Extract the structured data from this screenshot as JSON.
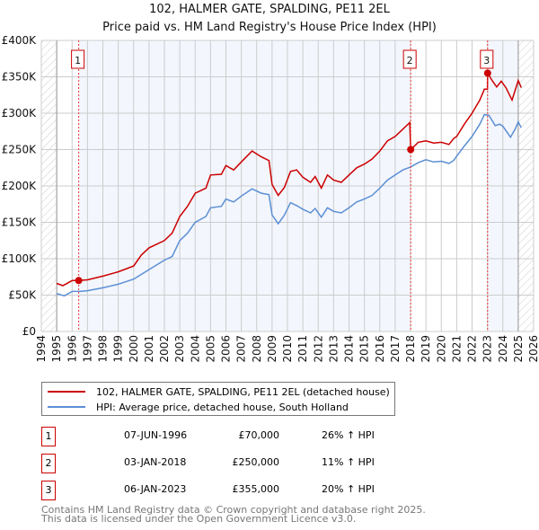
{
  "chart_data": {
    "type": "line",
    "title": "102, HALMER GATE, SPALDING, PE11 2EL",
    "subtitle": "Price paid vs. HM Land Registry's House Price Index (HPI)",
    "xlim": [
      1994,
      2026
    ],
    "ylim": [
      0,
      400000
    ],
    "x_ticks": [
      "1994",
      "1995",
      "1996",
      "1997",
      "1998",
      "1999",
      "2000",
      "2001",
      "2002",
      "2003",
      "2004",
      "2005",
      "2006",
      "2007",
      "2008",
      "2009",
      "2010",
      "2011",
      "2012",
      "2013",
      "2014",
      "2015",
      "2016",
      "2017",
      "2018",
      "2019",
      "2020",
      "2021",
      "2022",
      "2023",
      "2024",
      "2025",
      "2026"
    ],
    "y_ticks": [
      {
        "v": 0,
        "label": "£0"
      },
      {
        "v": 50000,
        "label": "£50K"
      },
      {
        "v": 100000,
        "label": "£100K"
      },
      {
        "v": 150000,
        "label": "£150K"
      },
      {
        "v": 200000,
        "label": "£200K"
      },
      {
        "v": 250000,
        "label": "£250K"
      },
      {
        "v": 300000,
        "label": "£300K"
      },
      {
        "v": 350000,
        "label": "£350K"
      },
      {
        "v": 400000,
        "label": "£400K"
      }
    ],
    "series": [
      {
        "name": "102, HALMER GATE, SPALDING, PE11 2EL (detached house)",
        "color": "#cc0000",
        "x": [
          1995,
          1995.4,
          1996,
          1996.43,
          1997,
          1998,
          1999,
          2000,
          2000.5,
          2001,
          2002,
          2002.5,
          2003,
          2003.5,
          2004,
          2004.7,
          2005,
          2005.7,
          2006,
          2006.5,
          2007,
          2007.7,
          2008.3,
          2008.8,
          2009,
          2009.4,
          2009.8,
          2010.2,
          2010.6,
          2011,
          2011.5,
          2011.8,
          2012.2,
          2012.6,
          2013,
          2013.5,
          2014,
          2014.5,
          2015,
          2015.5,
          2016,
          2016.5,
          2017,
          2017.5,
          2017.95,
          2018.01,
          2018.5,
          2019,
          2019.5,
          2020,
          2020.5,
          2020.8,
          2021,
          2021.5,
          2022,
          2022.5,
          2022.8,
          2023.0,
          2023.01,
          2023.3,
          2023.6,
          2023.9,
          2024.2,
          2024.6,
          2025,
          2025.2
        ],
        "y": [
          66000,
          63000,
          70000,
          70000,
          71000,
          76000,
          82000,
          90000,
          105000,
          115000,
          125000,
          135000,
          158000,
          172000,
          190000,
          197000,
          215000,
          216000,
          228000,
          222000,
          233000,
          248000,
          240000,
          235000,
          202000,
          187000,
          198000,
          220000,
          222000,
          212000,
          205000,
          213000,
          197000,
          215000,
          208000,
          205000,
          215000,
          225000,
          230000,
          237000,
          248000,
          262000,
          268000,
          278000,
          287000,
          250000,
          260000,
          262000,
          259000,
          260000,
          257000,
          265000,
          268000,
          285000,
          300000,
          318000,
          333000,
          333000,
          355000,
          345000,
          336000,
          344000,
          335000,
          318000,
          345000,
          335000
        ]
      },
      {
        "name": "HPI: Average price, detached house, South Holland",
        "color": "#5b8fd4",
        "x": [
          1995,
          1995.5,
          1996,
          1996.5,
          1997,
          1998,
          1999,
          2000,
          2001,
          2002,
          2002.5,
          2003,
          2003.5,
          2004,
          2004.7,
          2005,
          2005.7,
          2006,
          2006.5,
          2007,
          2007.7,
          2008.3,
          2008.8,
          2009,
          2009.4,
          2009.8,
          2010.2,
          2010.6,
          2011,
          2011.5,
          2011.8,
          2012.2,
          2012.6,
          2013,
          2013.5,
          2014,
          2014.5,
          2015,
          2015.5,
          2016,
          2016.5,
          2017,
          2017.5,
          2018,
          2018.5,
          2019,
          2019.5,
          2020,
          2020.5,
          2020.8,
          2021,
          2021.5,
          2022,
          2022.5,
          2022.8,
          2023.1,
          2023.5,
          2023.8,
          2024,
          2024.5,
          2024.8,
          2025,
          2025.2
        ],
        "y": [
          52000,
          49000,
          55000,
          55000,
          56000,
          60000,
          65000,
          72000,
          85000,
          98000,
          103000,
          125000,
          135000,
          150000,
          158000,
          170000,
          172000,
          182000,
          178000,
          186000,
          196000,
          190000,
          188000,
          160000,
          148000,
          160000,
          177000,
          173000,
          168000,
          163000,
          169000,
          157000,
          170000,
          165000,
          163000,
          170000,
          178000,
          182000,
          187000,
          197000,
          208000,
          215000,
          222000,
          226000,
          232000,
          236000,
          233000,
          234000,
          231000,
          235000,
          241000,
          255000,
          268000,
          285000,
          298000,
          297000,
          283000,
          285000,
          282000,
          267000,
          278000,
          288000,
          280000
        ]
      }
    ],
    "sales": [
      {
        "id": "1",
        "x": 1996.43,
        "y": 70000,
        "date": "07-JUN-1996",
        "price": "£70,000",
        "hpi": "26% ↑ HPI"
      },
      {
        "id": "2",
        "x": 2018.01,
        "y": 250000,
        "date": "03-JAN-2018",
        "price": "£250,000",
        "hpi": "11% ↑ HPI"
      },
      {
        "id": "3",
        "x": 2023.01,
        "y": 355000,
        "date": "06-JAN-2023",
        "price": "£355,000",
        "hpi": "20% ↑ HPI"
      }
    ],
    "data_range": [
      1995,
      2025
    ]
  },
  "legend": {
    "red": "102, HALMER GATE, SPALDING, PE11 2EL (detached house)",
    "blue": "HPI: Average price, detached house, South Holland"
  },
  "footer": {
    "line1": "Contains HM Land Registry data © Crown copyright and database right 2025.",
    "line2": "This data is licensed under the Open Government Licence v3.0."
  }
}
